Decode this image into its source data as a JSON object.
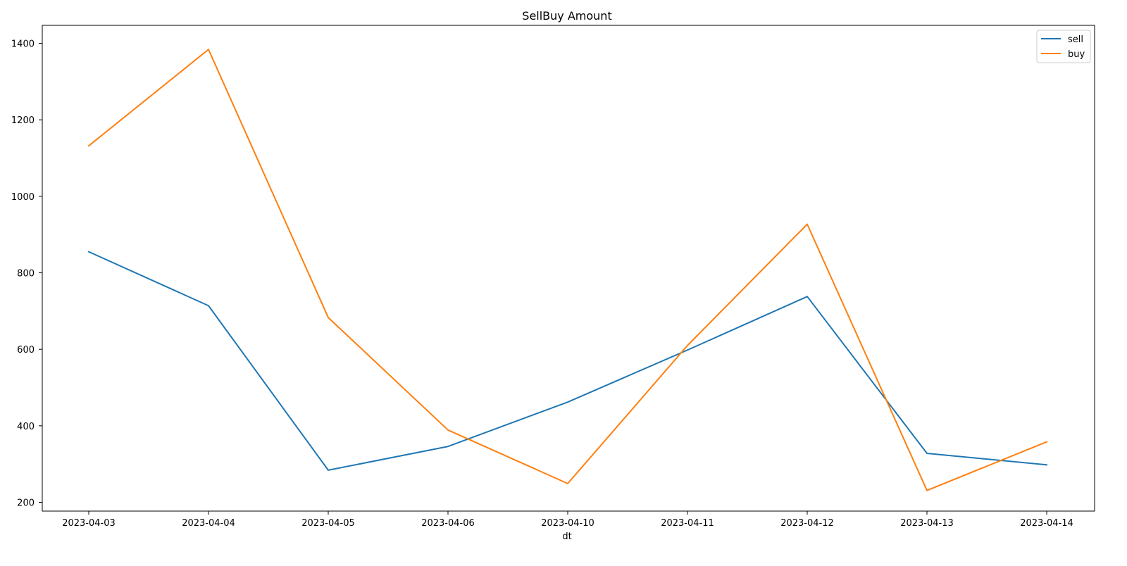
{
  "chart_data": {
    "type": "line",
    "title": "SellBuy Amount",
    "xlabel": "dt",
    "ylabel": "",
    "categories": [
      "2023-04-03",
      "2023-04-04",
      "2023-04-05",
      "2023-04-06",
      "2023-04-10",
      "2023-04-11",
      "2023-04-12",
      "2023-04-13",
      "2023-04-14"
    ],
    "yticks": [
      200,
      400,
      600,
      800,
      1000,
      1200,
      1400
    ],
    "ylim": [
      177,
      1447
    ],
    "grid": false,
    "legend_position": "top-right",
    "series": [
      {
        "name": "sell",
        "color": "#1f77b4",
        "values": [
          855,
          714,
          284,
          346,
          462,
          598,
          738,
          328,
          298
        ]
      },
      {
        "name": "buy",
        "color": "#ff7f0e",
        "values": [
          1132,
          1384,
          683,
          389,
          249,
          610,
          927,
          231,
          358
        ]
      }
    ]
  }
}
